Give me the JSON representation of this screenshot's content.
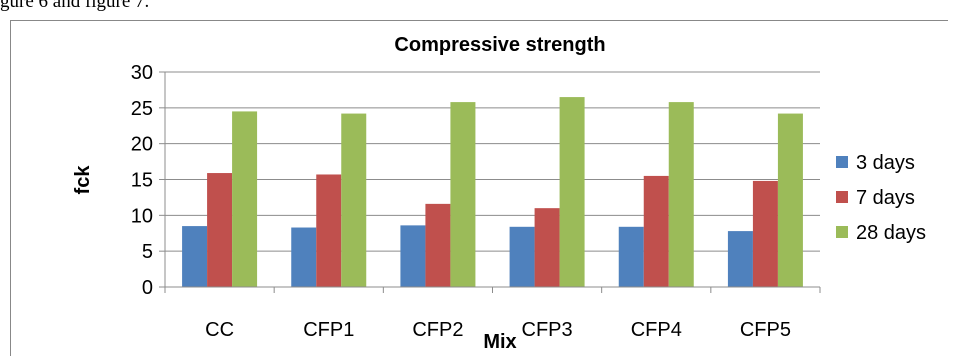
{
  "page": {
    "top_text": "gure 6 and figure 7."
  },
  "chart_data": {
    "type": "bar",
    "title": "Compressive strength",
    "xlabel": "Mix",
    "ylabel": "fck",
    "categories": [
      "CC",
      "CFP1",
      "CFP2",
      "CFP3",
      "CFP4",
      "CFP5"
    ],
    "ylim": [
      0,
      30
    ],
    "yticks": [
      0,
      5,
      10,
      15,
      20,
      25,
      30
    ],
    "grid": true,
    "legend": "right",
    "series": [
      {
        "name": "3 days",
        "color": "#4F81BD",
        "values": [
          8.5,
          8.3,
          8.6,
          8.4,
          8.4,
          7.8
        ]
      },
      {
        "name": "7 days",
        "color": "#C0504D",
        "values": [
          15.9,
          15.7,
          11.6,
          11.0,
          15.5,
          14.8
        ]
      },
      {
        "name": "28 days",
        "color": "#9BBB59",
        "values": [
          24.5,
          24.2,
          25.8,
          26.5,
          25.8,
          24.2
        ]
      }
    ]
  }
}
